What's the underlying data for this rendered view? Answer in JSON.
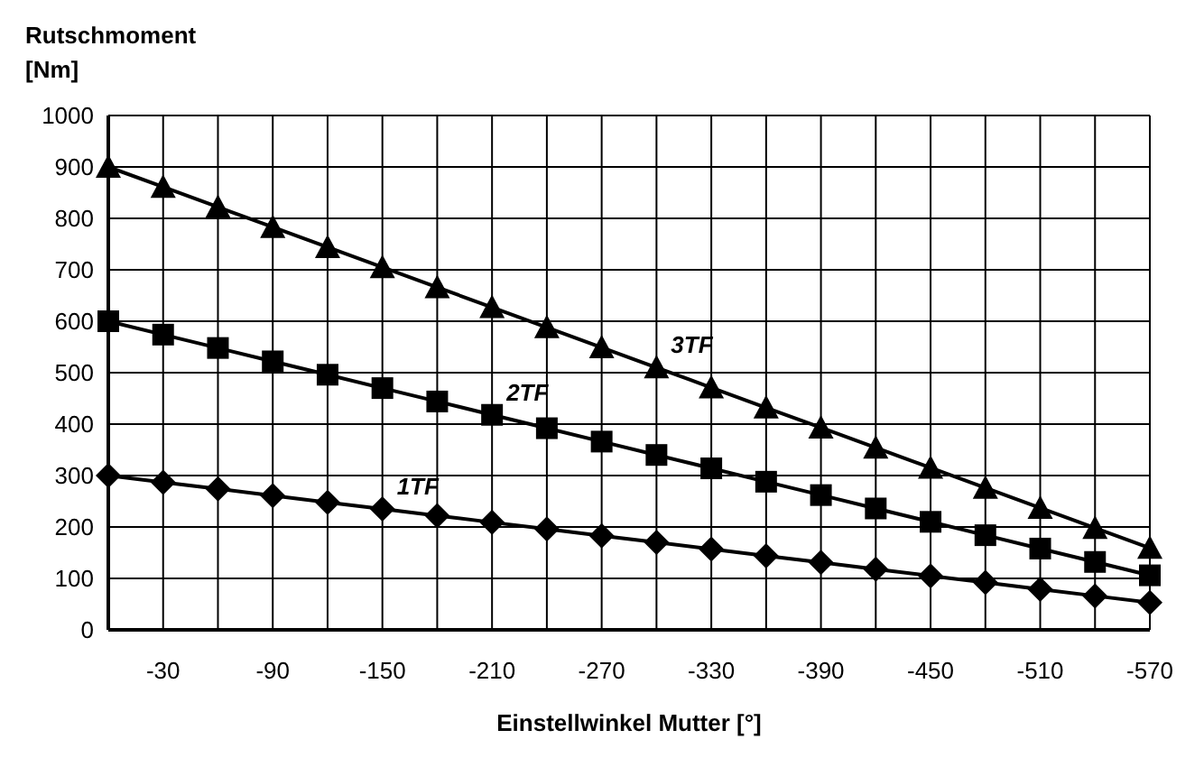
{
  "chart_data": {
    "type": "line",
    "xlabel": "Einstellwinkel Mutter [°]",
    "ylabel": "Rutschmoment [Nm]",
    "categories": [
      null,
      "-30",
      null,
      "-90",
      null,
      "-150",
      null,
      "-210",
      null,
      "-270",
      null,
      "-330",
      null,
      "-390",
      null,
      "-450",
      null,
      "-510",
      null,
      "-570"
    ],
    "ylim": [
      0,
      1000
    ],
    "yticks": [
      0,
      100,
      200,
      300,
      400,
      500,
      600,
      700,
      800,
      900,
      1000
    ],
    "grid": true,
    "legend": false,
    "line_style": "solid",
    "series": [
      {
        "name": "1TF",
        "color": "#000000",
        "marker": "diamond",
        "values": [
          300,
          287,
          274,
          261,
          248,
          235,
          222,
          209,
          196,
          183,
          170,
          157,
          144,
          131,
          118,
          105,
          92,
          79,
          66,
          53
        ]
      },
      {
        "name": "2TF",
        "color": "#000000",
        "marker": "square",
        "values": [
          600,
          574,
          548,
          522,
          496,
          470,
          444,
          418,
          392,
          366,
          340,
          314,
          288,
          262,
          236,
          210,
          184,
          158,
          132,
          106
        ]
      },
      {
        "name": "3TF",
        "color": "#000000",
        "marker": "triangle",
        "values": [
          900,
          861,
          822,
          783,
          744,
          705,
          666,
          627,
          588,
          549,
          510,
          471,
          432,
          393,
          354,
          315,
          276,
          237,
          198,
          159
        ]
      }
    ]
  }
}
